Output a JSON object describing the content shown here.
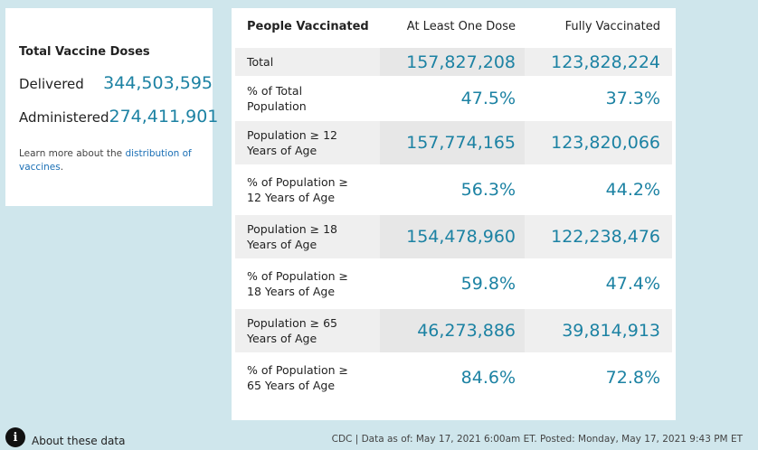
{
  "doses": {
    "title": "Total Vaccine Doses",
    "rows": [
      {
        "label": "Delivered",
        "value": "344,503,595"
      },
      {
        "label": "Administered",
        "value": "274,411,901"
      }
    ],
    "learn_prefix": "Learn more about the ",
    "learn_link": "distribution of vaccines",
    "learn_suffix": "."
  },
  "table": {
    "headers": [
      "People Vaccinated",
      "At Least One Dose",
      "Fully Vaccinated"
    ],
    "rows": [
      {
        "label": "Total",
        "one_dose": "157,827,208",
        "fully": "123,828,224"
      },
      {
        "label": "% of Total Population",
        "one_dose": "47.5%",
        "fully": "37.3%"
      },
      {
        "label": "Population ≥ 12 Years of Age",
        "one_dose": "157,774,165",
        "fully": "123,820,066"
      },
      {
        "label": "% of Population ≥ 12 Years of Age",
        "one_dose": "56.3%",
        "fully": "44.2%"
      },
      {
        "label": "Population ≥ 18 Years of Age",
        "one_dose": "154,478,960",
        "fully": "122,238,476"
      },
      {
        "label": "% of Population ≥ 18 Years of Age",
        "one_dose": "59.8%",
        "fully": "47.4%"
      },
      {
        "label": "Population ≥ 65 Years of Age",
        "one_dose": "46,273,886",
        "fully": "39,814,913"
      },
      {
        "label": "% of Population ≥ 65 Years of Age",
        "one_dose": "84.6%",
        "fully": "72.8%"
      }
    ]
  },
  "info": {
    "icon": "info-icon",
    "label": "About these data"
  },
  "footer": "CDC | Data as of: May 17, 2021 6:00am ET. Posted: Monday, May 17, 2021 9:43 PM ET",
  "colors": {
    "value": "#1c82a3",
    "link": "#1a6fb5",
    "background": "#cfe6ec"
  }
}
